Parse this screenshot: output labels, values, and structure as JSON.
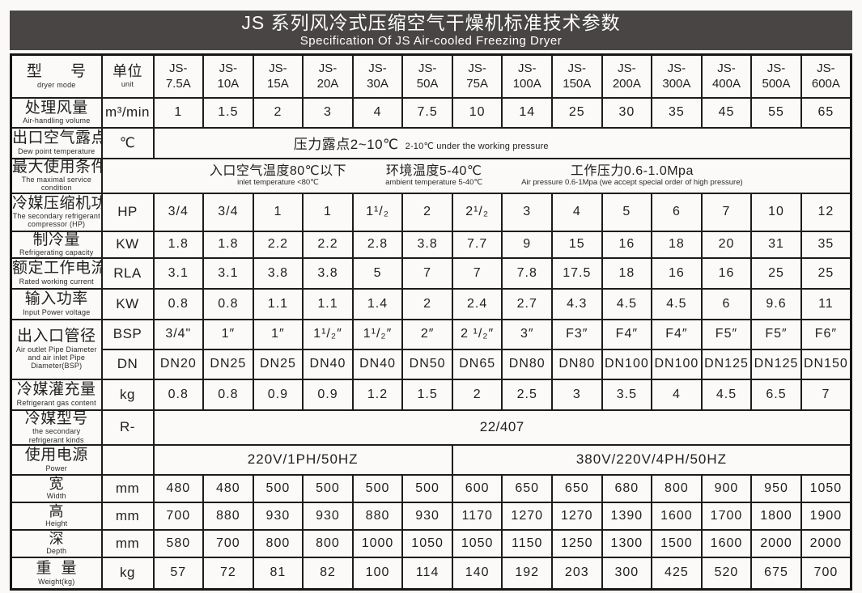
{
  "title": {
    "zh": "JS 系列风冷式压缩空气干燥机标准技术参数",
    "en": "Specification Of JS  Air-cooled Freezing Dryer"
  },
  "header": {
    "model": {
      "zh": "型      号",
      "en": "dryer mode"
    },
    "unit": {
      "zh": "单位",
      "en": "unit"
    },
    "models": [
      [
        "JS-",
        "7.5A"
      ],
      [
        "JS-",
        "10A"
      ],
      [
        "JS-",
        "15A"
      ],
      [
        "JS-",
        "20A"
      ],
      [
        "JS-",
        "30A"
      ],
      [
        "JS-",
        "50A"
      ],
      [
        "JS-",
        "75A"
      ],
      [
        "JS-",
        "100A"
      ],
      [
        "JS-",
        "150A"
      ],
      [
        "JS-",
        "200A"
      ],
      [
        "JS-",
        "300A"
      ],
      [
        "JS-",
        "400A"
      ],
      [
        "JS-",
        "500A"
      ],
      [
        "JS-",
        "600A"
      ]
    ]
  },
  "rows": [
    {
      "id": "air-volume",
      "zh": "处理风量",
      "en": "Air-handling volume",
      "unit": "m³/min",
      "type": "values",
      "values": [
        "1",
        "1.5",
        "2",
        "3",
        "4",
        "7.5",
        "10",
        "14",
        "25",
        "30",
        "35",
        "45",
        "55",
        "65"
      ]
    },
    {
      "id": "dew-point",
      "zh": "出口空气露点",
      "en": "Dew point temperature",
      "unit": "℃",
      "type": "merged14",
      "merged": {
        "big": "压力露点2~10℃",
        "small": "2-10℃ under the working pressure"
      }
    },
    {
      "id": "max-service",
      "zh": "最大使用条件",
      "en": "The maximal service\ncondition",
      "type": "mergedUnit",
      "groups": [
        {
          "big": "入口空气温度80℃以下",
          "small": "inlet temperature <80℃"
        },
        {
          "big": "环境温度5-40℃",
          "small": "ambient temperature 5-40℃"
        },
        {
          "big": "工作压力0.6-1.0Mpa",
          "small": "Air pressure 0.6-1Mpa (we accept special order of high pressure)"
        }
      ]
    },
    {
      "id": "compressor-power",
      "zh": "冷媒压缩机功率",
      "en": "The secondary refrigerant\ncompressor (HP)",
      "unit": "HP",
      "type": "values",
      "values": [
        "3/4",
        "3/4",
        "1",
        "1",
        "1¹/₂",
        "2",
        "2¹/₂",
        "3",
        "4",
        "5",
        "6",
        "7",
        "10",
        "12"
      ]
    },
    {
      "id": "refrigerating-capacity",
      "zh": "制冷量",
      "en": "Refrigerating  capacity",
      "unit": "KW",
      "type": "values",
      "values": [
        "1.8",
        "1.8",
        "2.2",
        "2.2",
        "2.8",
        "3.8",
        "7.7",
        "9",
        "15",
        "16",
        "18",
        "20",
        "31",
        "35"
      ]
    },
    {
      "id": "rated-current",
      "zh": "额定工作电流",
      "en": "Rated working current",
      "unit": "RLA",
      "type": "values",
      "values": [
        "3.1",
        "3.1",
        "3.8",
        "3.8",
        "5",
        "7",
        "7",
        "7.8",
        "17.5",
        "18",
        "16",
        "16",
        "25",
        "25"
      ]
    },
    {
      "id": "input-power",
      "zh": "输入功率",
      "en": "Input Power voltage",
      "unit": "KW",
      "type": "values",
      "values": [
        "0.8",
        "0.8",
        "1.1",
        "1.1",
        "1.4",
        "2",
        "2.4",
        "2.7",
        "4.3",
        "4.5",
        "4.5",
        "6",
        "9.6",
        "11"
      ]
    },
    {
      "id": "pipe-diameter",
      "zh": "出入口管径",
      "en": "Air outlet Pipe Diameter\nand air inlet Pipe\nDiameter(BSP)",
      "type": "double",
      "sub": [
        {
          "unit": "BSP",
          "values": [
            "3/4\"",
            "1″",
            "1″",
            "1¹/₂″",
            "1¹/₂″",
            "2″",
            "2 ¹/₂″",
            "3″",
            "F3″",
            "F4″",
            "F4″",
            "F5″",
            "F5″",
            "F6″"
          ]
        },
        {
          "unit": "DN",
          "values": [
            "DN20",
            "DN25",
            "DN25",
            "DN40",
            "DN40",
            "DN50",
            "DN65",
            "DN80",
            "DN80",
            "DN100",
            "DN100",
            "DN125",
            "DN125",
            "DN150"
          ]
        }
      ]
    },
    {
      "id": "refrigerant-content",
      "zh": "冷媒灌充量",
      "en": "Refrigerant gas content",
      "unit": "kg",
      "type": "values",
      "values": [
        "0.8",
        "0.8",
        "0.9",
        "0.9",
        "1.2",
        "1.5",
        "2",
        "2.5",
        "3",
        "3.5",
        "4",
        "4.5",
        "6.5",
        "7"
      ]
    },
    {
      "id": "refrigerant-kind",
      "zh": "冷媒型号",
      "en": "the secondary\nrefrigerant kinds",
      "unit": "R-",
      "type": "merged14",
      "merged": {
        "big": "22/407",
        "small": ""
      }
    },
    {
      "id": "power-supply",
      "zh": "使用电源",
      "en": "Power",
      "unit": "",
      "type": "split",
      "parts": [
        {
          "span": 6,
          "text": "220V/1PH/50HZ"
        },
        {
          "span": 8,
          "text": "380V/220V/4PH/50HZ"
        }
      ]
    },
    {
      "id": "width",
      "zh": "宽",
      "en": "Width",
      "unit": "mm",
      "type": "values",
      "values": [
        "480",
        "480",
        "500",
        "500",
        "500",
        "500",
        "600",
        "650",
        "650",
        "680",
        "800",
        "900",
        "950",
        "1050"
      ]
    },
    {
      "id": "height",
      "zh": "高",
      "en": "Height",
      "unit": "mm",
      "type": "values",
      "values": [
        "700",
        "880",
        "930",
        "930",
        "880",
        "930",
        "1170",
        "1270",
        "1270",
        "1390",
        "1600",
        "1700",
        "1800",
        "1900"
      ]
    },
    {
      "id": "depth",
      "zh": "深",
      "en": "Depth",
      "unit": "mm",
      "type": "values",
      "values": [
        "580",
        "700",
        "800",
        "800",
        "1000",
        "1050",
        "1050",
        "1150",
        "1250",
        "1300",
        "1500",
        "1600",
        "2000",
        "2000"
      ]
    },
    {
      "id": "weight",
      "zh": "重  量",
      "en": "Weight(kg)",
      "unit": "kg",
      "type": "values",
      "values": [
        "57",
        "72",
        "81",
        "82",
        "100",
        "114",
        "140",
        "192",
        "203",
        "300",
        "425",
        "520",
        "675",
        "700"
      ]
    }
  ]
}
